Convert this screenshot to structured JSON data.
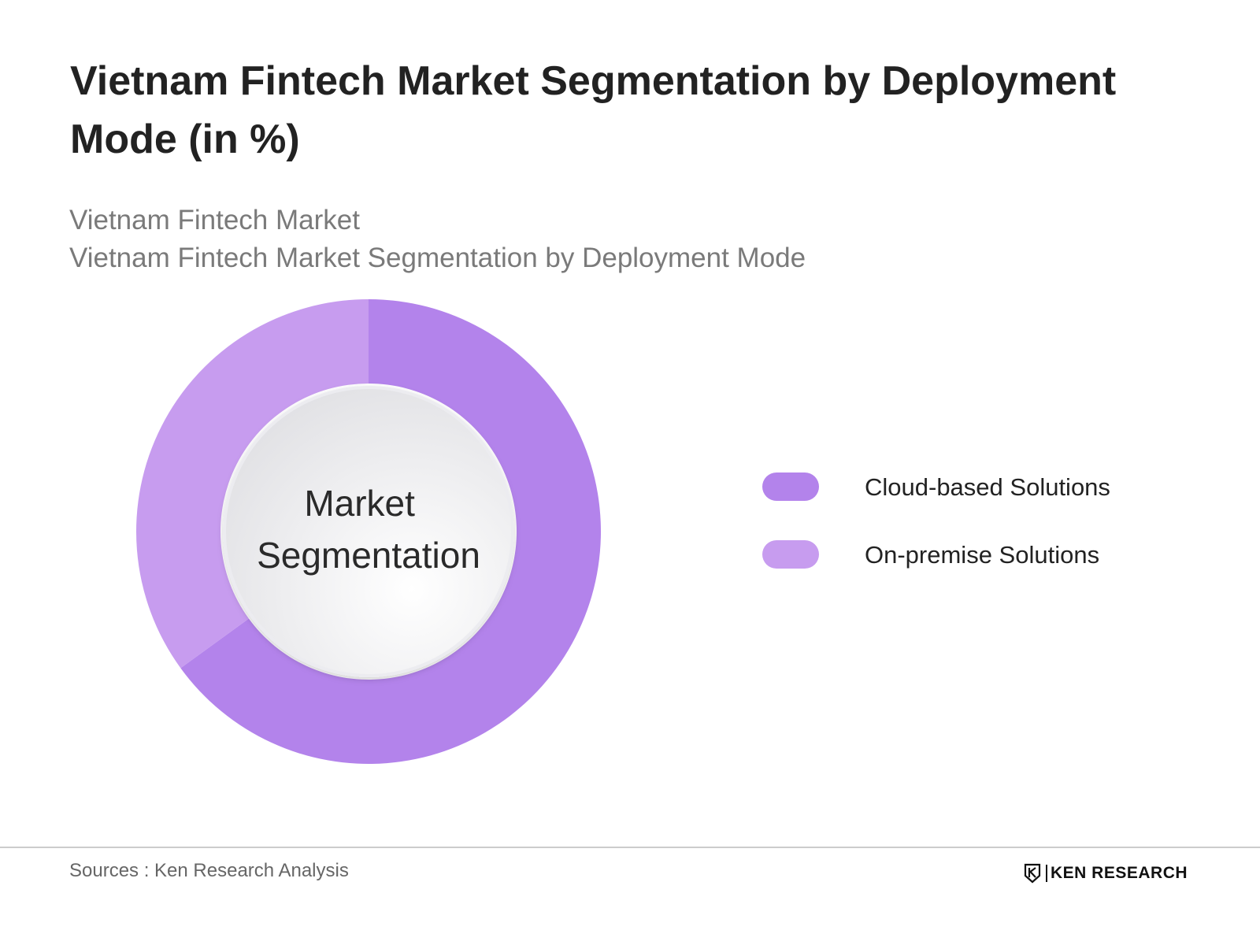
{
  "header": {
    "title": "Vietnam Fintech Market Segmentation by Deployment Mode (in %)",
    "subtitle_1": "Vietnam Fintech Market",
    "subtitle_2": "Vietnam Fintech Market Segmentation by Deployment Mode"
  },
  "chart_data": {
    "type": "pie",
    "variant": "donut",
    "center_label": [
      "Market",
      "Segmentation"
    ],
    "categories": [
      "Cloud-based Solutions",
      "On-premise Solutions"
    ],
    "values": [
      65,
      35
    ],
    "colors": [
      "#b383eb",
      "#c79cef"
    ],
    "legend_position": "right",
    "start_angle": "12 o'clock, clockwise"
  },
  "footer": {
    "sources": "Sources : Ken Research Analysis",
    "brand": "KEN RESEARCH",
    "brand_icon": "ken-research-k-shield-icon"
  }
}
